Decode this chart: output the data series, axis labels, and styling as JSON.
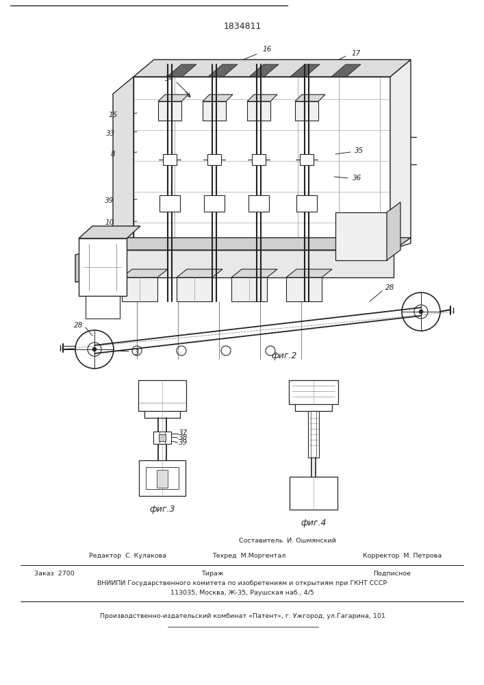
{
  "patent_number": "1834811",
  "fig2_label": "фиг.2",
  "fig3_label": "фиг.3",
  "fig4_label": "фиг.4",
  "footer_sestavitel": "Составитель  И. Ошмянский",
  "footer_redaktor": "Редактор  С. Кулакова",
  "footer_tehred": "Техред  М.Моргентал",
  "footer_korrektor": "Корректор  М. Петрова",
  "footer_zakaz": "Заказ  2700",
  "footer_tirazh": "Тираж",
  "footer_podpisnoe": "Подписное",
  "footer_vniipи": "ВНИИПИ Государственного комитета по изобретениям и открытиям при ГКНТ СССР",
  "footer_addr": "113035, Москва, Ж-35, Раушская наб., 4/5",
  "footer_patent": "Производственно-издательский комбинат «Патент», г. Ужгород, ул.Гагарина, 101",
  "bg_color": "#ffffff",
  "line_color": "#222222"
}
